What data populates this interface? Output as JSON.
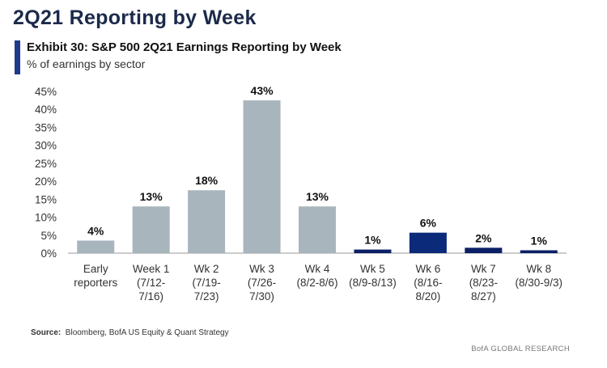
{
  "page": {
    "title": "2Q21 Reporting by Week",
    "exhibit_title": "Exhibit 30: S&P 500 2Q21 Earnings Reporting by Week",
    "subtitle": "% of earnings by sector",
    "source_label": "Source:",
    "source_text": "Bloomberg, BofA US Equity & Quant Strategy",
    "brand": "BofA GLOBAL RESEARCH"
  },
  "colors": {
    "accent": "#1f3a8a",
    "bar_past": "#a9b5bd",
    "bar_future": "#0b1f66",
    "bar_current": "#0b2a7a"
  },
  "chart_data": {
    "type": "bar",
    "title": "Exhibit 30: S&P 500 2Q21 Earnings Reporting by Week",
    "ylabel": "% of earnings by sector",
    "xlabel": "",
    "ylim": [
      0,
      45
    ],
    "yticks": [
      0,
      5,
      10,
      15,
      20,
      25,
      30,
      35,
      40,
      45
    ],
    "ytick_labels": [
      "0%",
      "5%",
      "10%",
      "15%",
      "20%",
      "25%",
      "30%",
      "35%",
      "40%",
      "45%"
    ],
    "categories": [
      [
        "Early",
        "reporters"
      ],
      [
        "Week 1",
        "(7/12-",
        "7/16)"
      ],
      [
        "Wk 2",
        "(7/19-",
        "7/23)"
      ],
      [
        "Wk 3",
        "(7/26-",
        "7/30)"
      ],
      [
        "Wk 4",
        "(8/2-8/6)"
      ],
      [
        "Wk 5",
        "(8/9-8/13)"
      ],
      [
        "Wk 6",
        "(8/16-",
        "8/20)"
      ],
      [
        "Wk 7",
        "(8/23-",
        "8/27)"
      ],
      [
        "Wk 8",
        "(8/30-9/3)"
      ]
    ],
    "values": [
      3.5,
      13,
      17.5,
      42.5,
      13,
      1,
      5.7,
      1.5,
      0.8
    ],
    "data_labels": [
      "4%",
      "13%",
      "18%",
      "43%",
      "13%",
      "1%",
      "6%",
      "2%",
      "1%"
    ],
    "bar_color_keys": [
      "bar_past",
      "bar_past",
      "bar_past",
      "bar_past",
      "bar_past",
      "bar_future",
      "bar_current",
      "bar_future",
      "bar_future"
    ],
    "grid": false
  }
}
